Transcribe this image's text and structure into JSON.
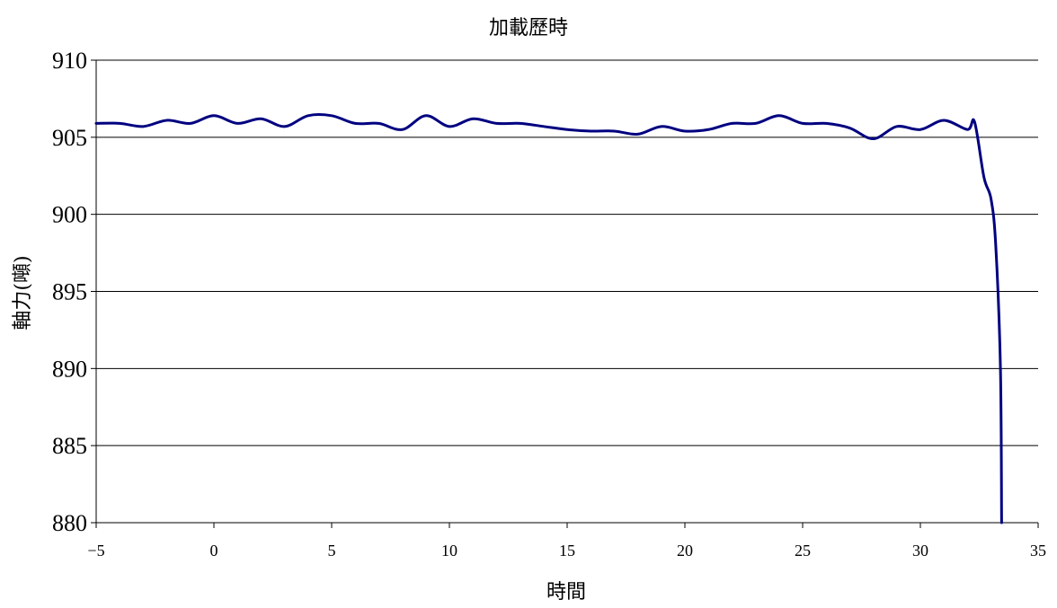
{
  "chart_data": {
    "type": "line",
    "title": "加載歷時",
    "xlabel": "時間",
    "ylabel": "軸力(噸)",
    "xlim": [
      -5,
      35
    ],
    "ylim": [
      880,
      910
    ],
    "xticks": [
      -5,
      0,
      5,
      10,
      15,
      20,
      25,
      30,
      35
    ],
    "yticks": [
      880,
      885,
      890,
      895,
      900,
      905,
      910
    ],
    "grid": "horizontal",
    "legend": "none",
    "series": [
      {
        "color": "#000080",
        "x": [
          -5,
          -4,
          -3,
          -2,
          -1,
          0,
          1,
          2,
          3,
          4,
          5,
          6,
          7,
          8,
          9,
          10,
          11,
          12,
          13,
          14,
          15,
          16,
          17,
          18,
          19,
          20,
          21,
          22,
          23,
          24,
          25,
          26,
          27,
          28,
          29,
          30,
          31,
          32,
          32.3,
          32.7,
          33.0,
          33.2,
          33.4,
          33.45
        ],
        "y": [
          905.9,
          905.9,
          905.7,
          906.1,
          905.9,
          906.4,
          905.9,
          906.2,
          905.7,
          906.4,
          906.4,
          905.9,
          905.9,
          905.5,
          906.4,
          905.7,
          906.2,
          905.9,
          905.9,
          905.7,
          905.5,
          905.4,
          905.4,
          905.2,
          905.7,
          905.4,
          905.5,
          905.9,
          905.9,
          906.4,
          905.9,
          905.9,
          905.6,
          904.9,
          905.7,
          905.5,
          906.1,
          905.5,
          906.0,
          902.4,
          901.0,
          898.0,
          890.0,
          880.0
        ]
      }
    ]
  }
}
